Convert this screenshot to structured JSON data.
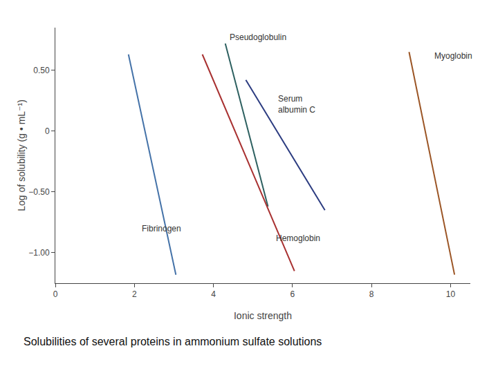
{
  "chart_data": {
    "type": "line",
    "xlabel": "Ionic strength",
    "ylabel": "Log of solubility (g • mL⁻¹)",
    "caption": "Solubilities of several proteins in ammonium sulfate solutions",
    "series": [
      {
        "name": "Fibrinogen",
        "color": "#4472a8",
        "x": [
          1.85,
          3.05
        ],
        "values": [
          0.63,
          -1.18
        ]
      },
      {
        "name": "Pseudoglobulin",
        "color": "#2d6060",
        "x": [
          4.3,
          5.38
        ],
        "values": [
          0.72,
          -0.62
        ]
      },
      {
        "name": "Hemoglobin",
        "color": "#a83030",
        "x": [
          3.72,
          6.05
        ],
        "values": [
          0.63,
          -1.15
        ]
      },
      {
        "name": "Serum\nalbumin C",
        "color": "#2b3b80",
        "x": [
          4.82,
          6.82
        ],
        "values": [
          0.42,
          -0.65
        ]
      },
      {
        "name": "Myoglobin",
        "color": "#9b5525",
        "x": [
          8.95,
          10.1
        ],
        "values": [
          0.65,
          -1.18
        ]
      }
    ],
    "annotations": [
      {
        "text": "Fibrinogen",
        "x": 2.15,
        "y": -0.8
      },
      {
        "text": "Pseudoglobulin",
        "x": 4.38,
        "y": 0.77
      },
      {
        "text": "Hemoglobin",
        "x": 5.55,
        "y": -0.88
      },
      {
        "text": "Serum\nalbumin C",
        "x": 5.6,
        "y": 0.22
      },
      {
        "text": "Myoglobin",
        "x": 9.55,
        "y": 0.62
      }
    ],
    "xlim": [
      0,
      10.5
    ],
    "ylim": [
      -1.25,
      0.85
    ],
    "xticks": [
      0,
      2,
      4,
      6,
      8,
      10
    ],
    "yticks": [
      {
        "value": -1.0,
        "label": "−1.00"
      },
      {
        "value": -0.5,
        "label": "−0.50"
      },
      0,
      {
        "value": 0.5,
        "label": "0.50"
      }
    ],
    "grid": false
  }
}
